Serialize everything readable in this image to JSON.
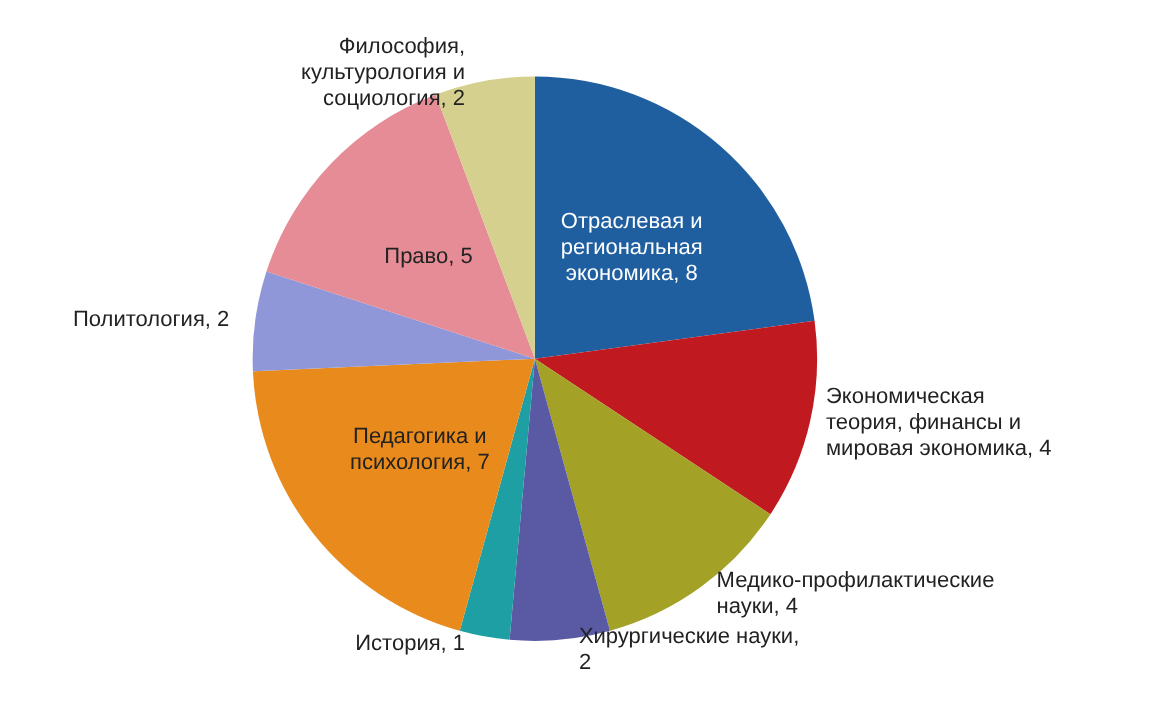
{
  "chart_data": {
    "type": "pie",
    "categories": [
      "Отраслевая и региональная экономика, 8",
      "Экономическая теория, финансы и мировая экономика, 4",
      "Медико-профилактические науки, 4",
      "Хирургические науки, 2",
      "История, 1",
      "Педагогика и психология, 7",
      "Политология, 2",
      "Право, 5",
      "Философия, культурология и социология, 2"
    ],
    "values": [
      8,
      4,
      4,
      2,
      1,
      7,
      2,
      5,
      2
    ],
    "colors": [
      "#1f5fa0",
      "#c0191f",
      "#a3a126",
      "#5a5aa4",
      "#1d9fa3",
      "#e98a1c",
      "#8f97d8",
      "#e58c96",
      "#d6d08e"
    ],
    "legend": false
  }
}
